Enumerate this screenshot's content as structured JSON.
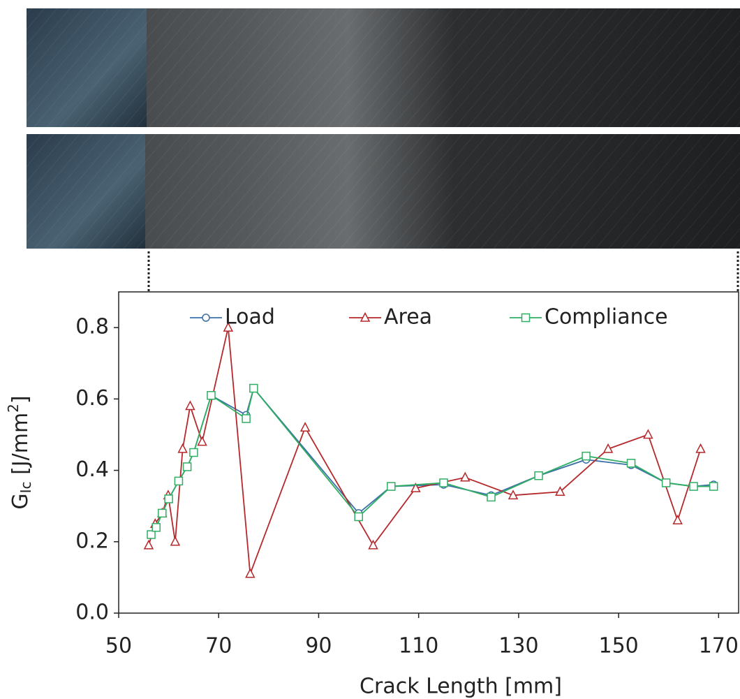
{
  "chart_data": {
    "type": "line",
    "ylabel_parts": [
      "G",
      "Ic",
      " [J/mm",
      "2",
      "]"
    ],
    "xlabel": "Crack Length [mm]",
    "xlim": [
      50,
      174
    ],
    "xticks": [
      50,
      70,
      90,
      110,
      130,
      150,
      170
    ],
    "ylim": [
      0,
      0.9
    ],
    "yticks": [
      {
        "value": 0,
        "label": "0.0"
      },
      0.2,
      0.4,
      0.6,
      0.8
    ],
    "grid": false,
    "legend": "top",
    "series": [
      {
        "name": "Load",
        "color": "#3b6fa8",
        "marker": "circle",
        "x": [
          56.5,
          57.5,
          58.7,
          60,
          62,
          63.7,
          65,
          68.5,
          75.5,
          77,
          98,
          104.5,
          115,
          124.5,
          134,
          143.5,
          152.5,
          159.5,
          165,
          169
        ],
        "values": [
          0.22,
          0.24,
          0.28,
          0.32,
          0.37,
          0.41,
          0.45,
          0.61,
          0.555,
          0.63,
          0.28,
          0.355,
          0.36,
          0.33,
          0.385,
          0.43,
          0.415,
          0.365,
          0.355,
          0.36
        ]
      },
      {
        "name": "Area",
        "color": "#b5282b",
        "marker": "triangle",
        "x": [
          56,
          57.3,
          58.7,
          59.9,
          61.3,
          62.8,
          64.3,
          66.7,
          71.9,
          76.3,
          87.3,
          100.9,
          109.4,
          119.3,
          128.9,
          138.3,
          147.9,
          155.9,
          161.8,
          166.4
        ],
        "values": [
          0.19,
          0.25,
          0.28,
          0.33,
          0.2,
          0.46,
          0.58,
          0.48,
          0.8,
          0.11,
          0.52,
          0.19,
          0.35,
          0.38,
          0.33,
          0.34,
          0.46,
          0.5,
          0.26,
          0.46
        ]
      },
      {
        "name": "Compliance",
        "color": "#2fae64",
        "marker": "square",
        "x": [
          56.5,
          57.5,
          58.7,
          60,
          62,
          63.7,
          65,
          68.5,
          75.5,
          77,
          98,
          104.5,
          115,
          124.5,
          134,
          143.5,
          152.5,
          159.5,
          165,
          169
        ],
        "values": [
          0.22,
          0.24,
          0.28,
          0.32,
          0.37,
          0.41,
          0.45,
          0.61,
          0.545,
          0.63,
          0.27,
          0.355,
          0.365,
          0.325,
          0.385,
          0.44,
          0.42,
          0.365,
          0.355,
          0.355
        ]
      }
    ]
  }
}
